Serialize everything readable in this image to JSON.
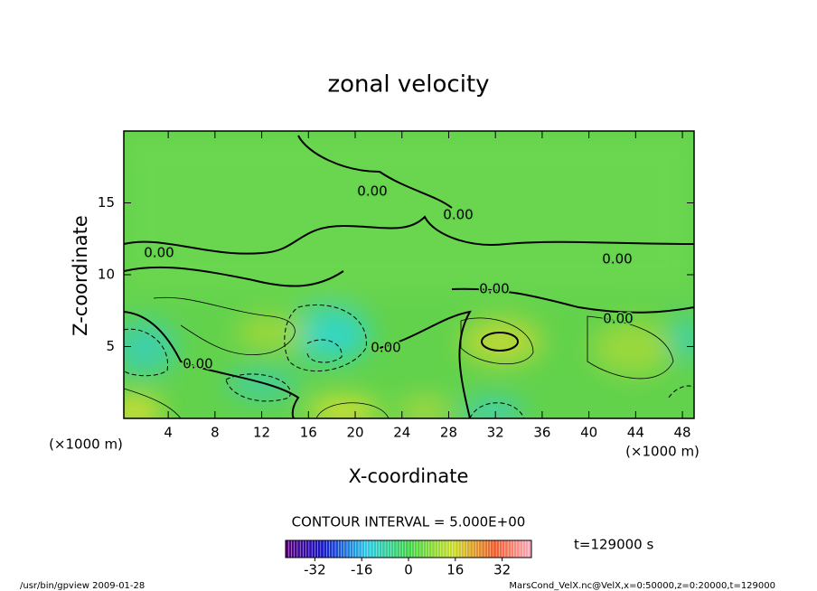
{
  "chart_data": {
    "type": "contour",
    "title": "zonal velocity",
    "x_label": "X-coordinate",
    "y_label": "Z-coordinate",
    "x_unit": "(×1000 m)",
    "xlim": [
      0.2,
      49
    ],
    "ylim": [
      0,
      20
    ],
    "xticks": [
      4,
      8,
      12,
      16,
      20,
      24,
      28,
      32,
      36,
      40,
      44,
      48
    ],
    "yticks": [
      5,
      10,
      15
    ],
    "contour_labels": [
      "0.00",
      "0.00",
      "0.00",
      "0.00",
      "0.00",
      "0.00",
      "0.00",
      "0.00"
    ],
    "contour_interval": "CONTOUR INTERVAL = 5.000E+00",
    "colorbar": {
      "lim": [
        -42,
        42
      ],
      "ticks": [
        -32,
        -16,
        0,
        16,
        32
      ]
    },
    "time_label": "t=129000 s",
    "footer_left": "/usr/bin/gpview  2009-01-28",
    "footer_right": "MarsCond_VelX.nc@VelX,x=0:50000,z=0:20000,t=129000"
  }
}
